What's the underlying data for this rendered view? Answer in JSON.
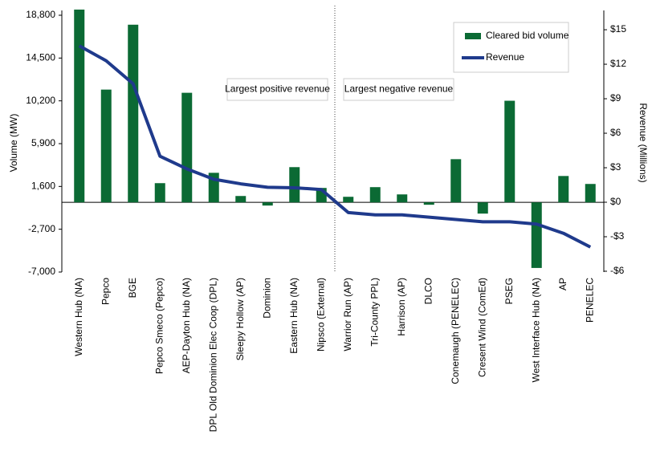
{
  "chart_data": {
    "type": "bar",
    "y_label": "Volume (MW)",
    "y2_label": "Revenue (Millions)",
    "categories": [
      "Western Hub (NA)",
      "Pepco",
      "BGE",
      "Pepco Smeco (Pepco)",
      "AEP-Dayton Hub (NA)",
      "DPL Old Dominion Elec Coop (DPL)",
      "Sleepy Hollow (AP)",
      "Dominion",
      "Eastern Hub (NA)",
      "Nipsco (External)",
      "Warrior Run (AP)",
      "Tri-County PPL)",
      "Harrison (AP)",
      "DLCO",
      "Conemaugh (PENELEC)",
      "Cresent Wind (ComEd)",
      "PSEG",
      "West Interface Hub (NA)",
      "AP",
      "PENELEC"
    ],
    "series": [
      {
        "name": "Cleared bid volume",
        "type": "bar",
        "color": "#0b6a34",
        "values": [
          19370,
          11330,
          17850,
          1930,
          11010,
          2970,
          640,
          -320,
          3540,
          1450,
          560,
          1530,
          800,
          -240,
          4340,
          -1130,
          10210,
          -6590,
          2650,
          1850
        ]
      },
      {
        "name": "Revenue",
        "type": "line",
        "axis": "y2",
        "color": "#1f3a8c",
        "values": [
          13.6,
          12.3,
          10.3,
          4.0,
          2.9,
          2.0,
          1.6,
          1.3,
          1.26,
          1.1,
          -0.9,
          -1.1,
          -1.1,
          -1.3,
          -1.5,
          -1.7,
          -1.7,
          -1.9,
          -2.7,
          -3.9
        ]
      }
    ],
    "ylim": [
      -7000,
      18800
    ],
    "yticks": [
      {
        "value": -7000,
        "label": "-7,000"
      },
      {
        "value": -2700,
        "label": "-2,700"
      },
      {
        "value": 1600,
        "label": "1,600"
      },
      {
        "value": 5900,
        "label": "5,900"
      },
      {
        "value": 10200,
        "label": "10,200"
      },
      {
        "value": 14500,
        "label": "14,500"
      },
      {
        "value": 18800,
        "label": "18,800"
      }
    ],
    "y2lim": [
      -6.07,
      16.26
    ],
    "y2ticks": [
      {
        "value": -6,
        "label": "-$6"
      },
      {
        "value": -3,
        "label": "-$3"
      },
      {
        "value": 0,
        "label": "$0"
      },
      {
        "value": 3,
        "label": "$3"
      },
      {
        "value": 6,
        "label": "$6"
      },
      {
        "value": 9,
        "label": "$9"
      },
      {
        "value": 12,
        "label": "$12"
      },
      {
        "value": 15,
        "label": "$15"
      }
    ],
    "annotations": [
      "Largest positive revenue",
      "Largest negative revenue"
    ],
    "legend": "upper right",
    "grid": false
  }
}
